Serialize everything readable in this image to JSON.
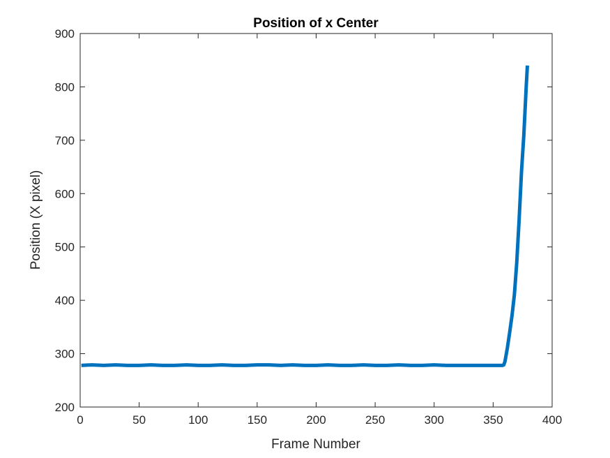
{
  "chart_data": {
    "type": "line",
    "title": "Position of x Center",
    "xlabel": "Frame Number",
    "ylabel": "Position (X pixel)",
    "xlim": [
      0,
      400
    ],
    "ylim": [
      200,
      900
    ],
    "xticks": [
      0,
      50,
      100,
      150,
      200,
      250,
      300,
      350,
      400
    ],
    "yticks": [
      200,
      300,
      400,
      500,
      600,
      700,
      800,
      900
    ],
    "grid": false,
    "legend": "none",
    "series": [
      {
        "color": "#0072BD",
        "x": [
          1,
          10,
          20,
          30,
          40,
          50,
          60,
          70,
          80,
          90,
          100,
          110,
          120,
          130,
          140,
          150,
          160,
          170,
          180,
          190,
          200,
          210,
          220,
          230,
          240,
          250,
          260,
          270,
          280,
          290,
          300,
          310,
          320,
          330,
          340,
          350,
          358,
          359,
          360,
          362,
          364,
          366,
          368,
          370,
          372,
          374,
          376,
          378,
          379
        ],
        "y": [
          278,
          279,
          278,
          279,
          278,
          278,
          279,
          278,
          278,
          279,
          278,
          278,
          279,
          278,
          278,
          279,
          279,
          278,
          279,
          278,
          278,
          279,
          278,
          278,
          279,
          278,
          278,
          279,
          278,
          278,
          279,
          278,
          278,
          278,
          278,
          278,
          278,
          279,
          285,
          310,
          340,
          372,
          410,
          470,
          550,
          640,
          710,
          800,
          840
        ]
      }
    ]
  }
}
